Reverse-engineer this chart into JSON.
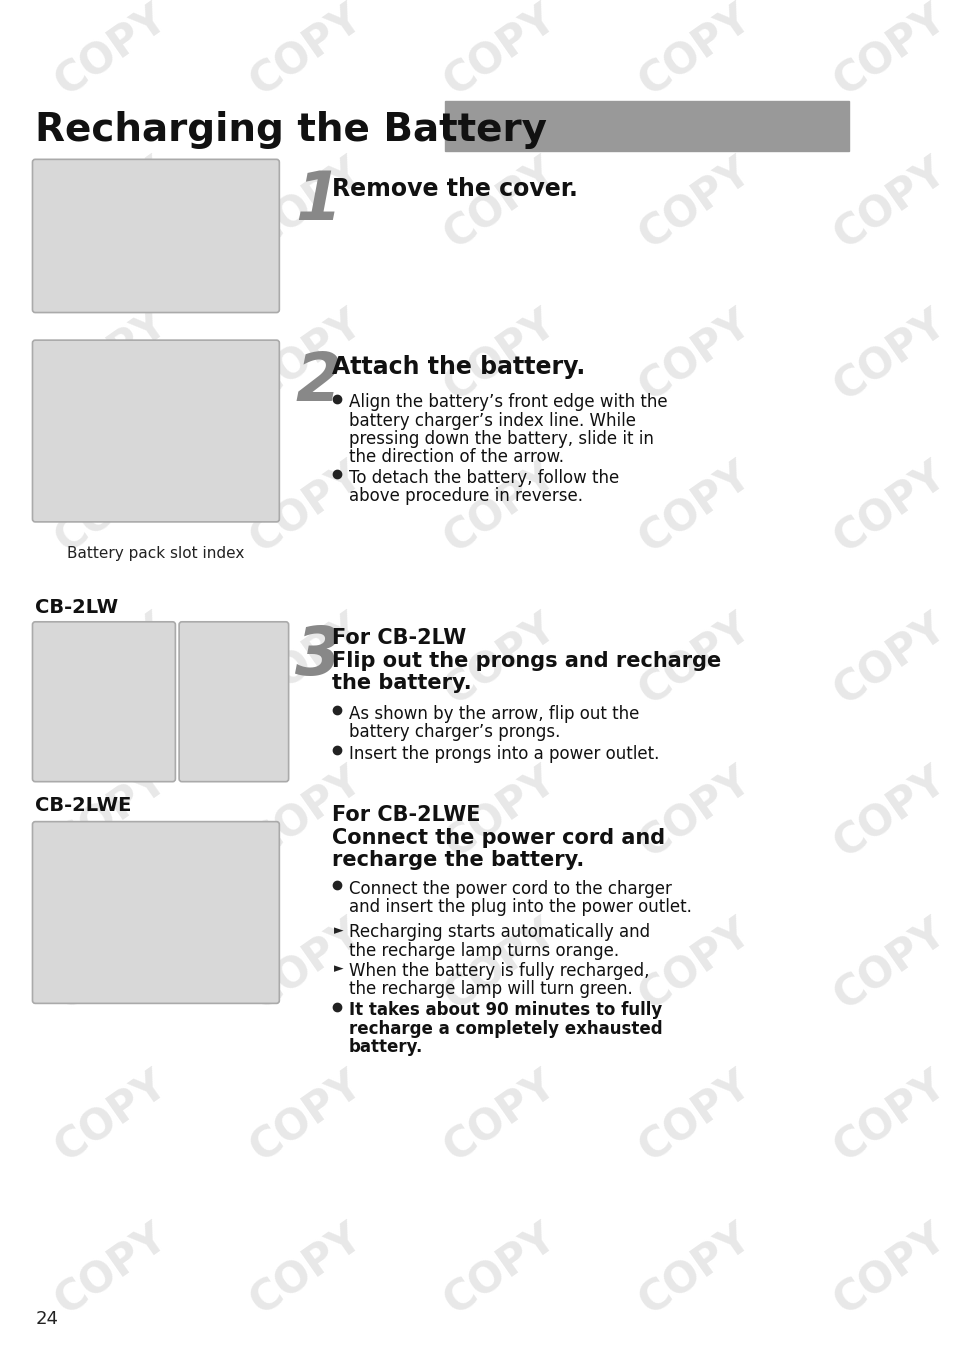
{
  "title": "Recharging the Battery",
  "title_bar_color": "#999999",
  "background_color": "#ffffff",
  "page_number": "24",
  "content": {
    "step1_heading": "Remove the cover.",
    "step2_heading": "Attach the battery.",
    "step2_bullet1_lines": [
      "Align the battery’s front edge with the",
      "battery charger’s index line. While",
      "pressing down the battery, slide it in",
      "the direction of the arrow."
    ],
    "step2_bullet2_lines": [
      "To detach the battery, follow the",
      "above procedure in reverse."
    ],
    "step2_caption": "Battery pack slot index",
    "step3_label": "CB-2LW",
    "step3_heading1": "For CB-2LW",
    "step3_heading2_lines": [
      "Flip out the prongs and recharge",
      "the battery."
    ],
    "step3_bullet1_lines": [
      "As shown by the arrow, flip out the",
      "battery charger’s prongs."
    ],
    "step3_bullet2": "Insert the prongs into a power outlet.",
    "step4_label": "CB-2LWE",
    "step4_heading1": "For CB-2LWE",
    "step4_heading2_lines": [
      "Connect the power cord and",
      "recharge the battery."
    ],
    "step4_bullet1_lines": [
      "Connect the power cord to the charger",
      "and insert the plug into the power outlet."
    ],
    "step4_arrow1_lines": [
      "Recharging starts automatically and",
      "the recharge lamp turns orange."
    ],
    "step4_arrow2_lines": [
      "When the battery is fully recharged,",
      "the recharge lamp will turn green."
    ],
    "step4_bold_lines": [
      "It takes about 90 minutes to fully",
      "recharge a completely exhausted",
      "battery."
    ]
  },
  "image_bg": "#d8d8d8",
  "image_border": "#aaaaaa",
  "step_number_color": "#888888",
  "watermark_color": "#cccccc"
}
